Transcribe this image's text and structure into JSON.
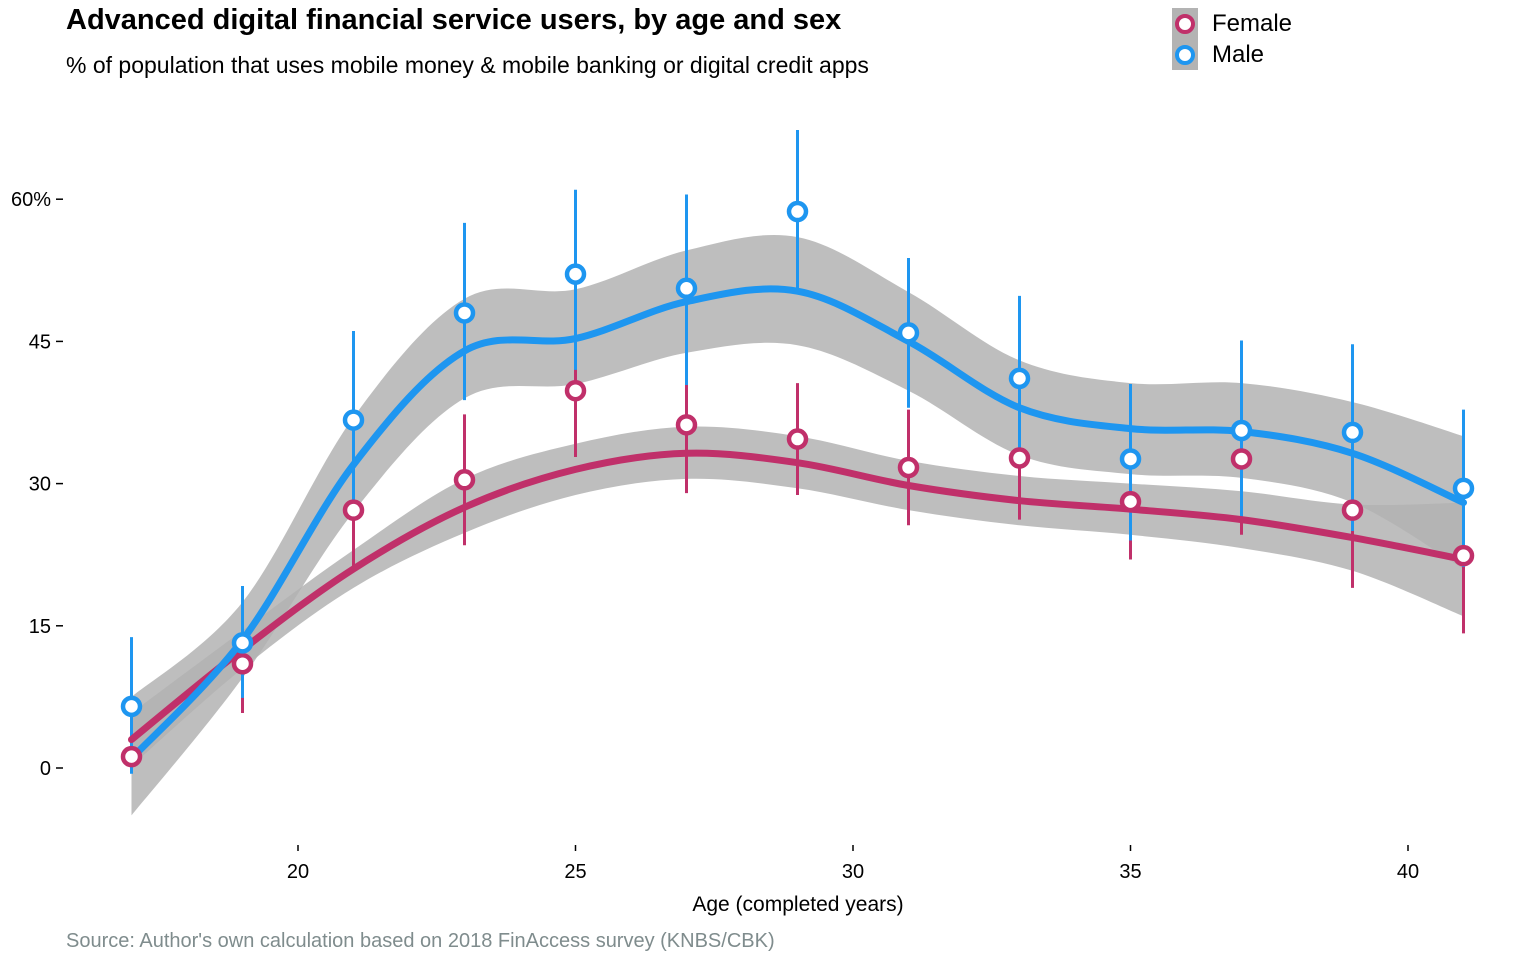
{
  "header": {
    "title": "Advanced digital financial service users, by age and sex",
    "subtitle": "% of population that uses mobile money & mobile banking or digital credit apps"
  },
  "footer": {
    "source": "Source: Author's own calculation based on 2018 FinAccess survey (KNBS/CBK)"
  },
  "colors": {
    "female": "#c0306a",
    "male": "#1e96f0",
    "ribbon": "#b3b3b3"
  },
  "legend": {
    "position": "top-right",
    "items": [
      {
        "label": "Female",
        "color": "#c0306a"
      },
      {
        "label": "Male",
        "color": "#1e96f0"
      }
    ]
  },
  "chart_data": {
    "type": "scatter",
    "title": "Advanced digital financial service users, by age and sex",
    "subtitle": "% of population that uses mobile money & mobile banking or digital credit apps",
    "xlabel": "Age (completed years)",
    "ylabel": "",
    "xlim": [
      15.5,
      42.5
    ],
    "ylim": [
      -8,
      67
    ],
    "grid": false,
    "x_ticks": [
      20,
      25,
      30,
      35,
      40
    ],
    "x_tick_labels": [
      "20",
      "25",
      "30",
      "35",
      "40"
    ],
    "y_ticks": [
      0,
      15,
      30,
      45,
      60
    ],
    "y_tick_labels": [
      "0",
      "15",
      "30",
      "45",
      "60%"
    ],
    "series": [
      {
        "name": "Female",
        "color": "#c0306a",
        "points": [
          {
            "x": 17,
            "y": 1.2,
            "lo": 0.3,
            "hi": 2.2
          },
          {
            "x": 19,
            "y": 11.0,
            "lo": 5.8,
            "hi": 16.0
          },
          {
            "x": 21,
            "y": 27.2,
            "lo": 21.0,
            "hi": 33.0
          },
          {
            "x": 23,
            "y": 30.4,
            "lo": 23.5,
            "hi": 37.3
          },
          {
            "x": 25,
            "y": 39.8,
            "lo": 32.8,
            "hi": 43.2
          },
          {
            "x": 27,
            "y": 36.2,
            "lo": 29.0,
            "hi": 40.8
          },
          {
            "x": 29,
            "y": 34.7,
            "lo": 28.8,
            "hi": 40.6
          },
          {
            "x": 31,
            "y": 31.7,
            "lo": 25.6,
            "hi": 37.8
          },
          {
            "x": 33,
            "y": 32.7,
            "lo": 26.2,
            "hi": 39.2
          },
          {
            "x": 35,
            "y": 28.1,
            "lo": 22.0,
            "hi": 34.2
          },
          {
            "x": 37,
            "y": 32.6,
            "lo": 24.6,
            "hi": 36.0
          },
          {
            "x": 39,
            "y": 27.2,
            "lo": 19.0,
            "hi": 34.8
          },
          {
            "x": 41,
            "y": 22.4,
            "lo": 14.2,
            "hi": 29.8
          }
        ],
        "smooth": [
          {
            "x": 17,
            "y": 3.0,
            "lo": 0.2,
            "hi": 5.8
          },
          {
            "x": 19,
            "y": 12.5,
            "lo": 10.5,
            "hi": 14.5
          },
          {
            "x": 21,
            "y": 21.0,
            "lo": 19.0,
            "hi": 23.0
          },
          {
            "x": 23,
            "y": 27.5,
            "lo": 24.8,
            "hi": 30.5
          },
          {
            "x": 25,
            "y": 31.5,
            "lo": 28.8,
            "hi": 34.2
          },
          {
            "x": 27,
            "y": 33.2,
            "lo": 30.5,
            "hi": 36.0
          },
          {
            "x": 29,
            "y": 32.2,
            "lo": 29.5,
            "hi": 35.0
          },
          {
            "x": 31,
            "y": 29.8,
            "lo": 27.2,
            "hi": 32.4
          },
          {
            "x": 33,
            "y": 28.2,
            "lo": 25.6,
            "hi": 30.8
          },
          {
            "x": 35,
            "y": 27.3,
            "lo": 24.6,
            "hi": 30.0
          },
          {
            "x": 37,
            "y": 26.2,
            "lo": 23.2,
            "hi": 29.2
          },
          {
            "x": 39,
            "y": 24.3,
            "lo": 20.8,
            "hi": 27.8
          },
          {
            "x": 41,
            "y": 22.0,
            "lo": 16.0,
            "hi": 28.0
          }
        ]
      },
      {
        "name": "Male",
        "color": "#1e96f0",
        "points": [
          {
            "x": 17,
            "y": 6.5,
            "lo": -0.6,
            "hi": 13.8
          },
          {
            "x": 19,
            "y": 13.2,
            "lo": 7.4,
            "hi": 19.2
          },
          {
            "x": 21,
            "y": 36.7,
            "lo": 27.6,
            "hi": 46.1
          },
          {
            "x": 23,
            "y": 48.0,
            "lo": 38.8,
            "hi": 57.5
          },
          {
            "x": 25,
            "y": 52.1,
            "lo": 42.0,
            "hi": 61.0
          },
          {
            "x": 27,
            "y": 50.6,
            "lo": 40.4,
            "hi": 60.5
          },
          {
            "x": 29,
            "y": 58.7,
            "lo": 50.4,
            "hi": 67.3
          },
          {
            "x": 31,
            "y": 45.9,
            "lo": 38.0,
            "hi": 53.8
          },
          {
            "x": 33,
            "y": 41.1,
            "lo": 32.1,
            "hi": 49.8
          },
          {
            "x": 35,
            "y": 32.6,
            "lo": 24.0,
            "hi": 40.5
          },
          {
            "x": 37,
            "y": 35.6,
            "lo": 26.0,
            "hi": 45.1
          },
          {
            "x": 39,
            "y": 35.4,
            "lo": 25.0,
            "hi": 44.7
          },
          {
            "x": 41,
            "y": 29.5,
            "lo": 21.2,
            "hi": 37.8
          }
        ],
        "smooth": [
          {
            "x": 17,
            "y": 1.0,
            "lo": -5.0,
            "hi": 7.5
          },
          {
            "x": 19,
            "y": 13.5,
            "lo": 9.5,
            "hi": 17.5
          },
          {
            "x": 21,
            "y": 32.0,
            "lo": 27.0,
            "hi": 37.0
          },
          {
            "x": 23,
            "y": 44.0,
            "lo": 39.0,
            "hi": 49.5
          },
          {
            "x": 25,
            "y": 45.3,
            "lo": 40.5,
            "hi": 50.5
          },
          {
            "x": 27,
            "y": 49.2,
            "lo": 43.8,
            "hi": 54.6
          },
          {
            "x": 29,
            "y": 50.3,
            "lo": 44.6,
            "hi": 56.0
          },
          {
            "x": 31,
            "y": 45.0,
            "lo": 39.8,
            "hi": 50.2
          },
          {
            "x": 33,
            "y": 38.0,
            "lo": 33.0,
            "hi": 43.0
          },
          {
            "x": 35,
            "y": 35.8,
            "lo": 31.0,
            "hi": 40.6
          },
          {
            "x": 37,
            "y": 35.5,
            "lo": 30.6,
            "hi": 40.6
          },
          {
            "x": 39,
            "y": 33.2,
            "lo": 28.0,
            "hi": 38.6
          },
          {
            "x": 41,
            "y": 28.0,
            "lo": 21.0,
            "hi": 35.0
          }
        ]
      }
    ]
  }
}
